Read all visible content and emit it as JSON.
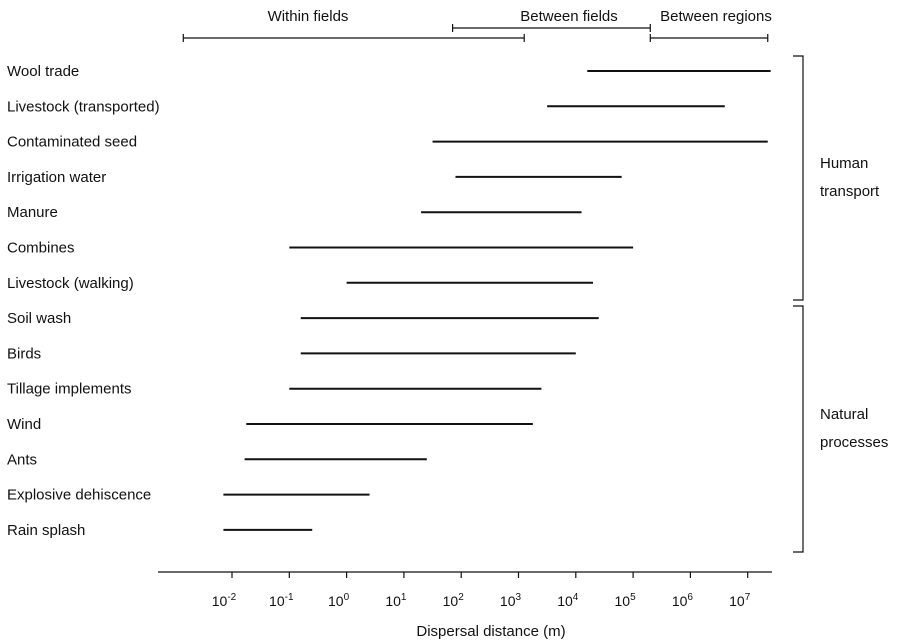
{
  "chart_data": {
    "type": "range-bar",
    "xlabel": "Dispersal distance (m)",
    "xscale": "log10",
    "xlim_exponent": [
      -2.3,
      7.5
    ],
    "tick_base": "10",
    "tick_exponents": [
      "-2",
      "-1",
      "0",
      "1",
      "2",
      "3",
      "4",
      "5",
      "6",
      "7"
    ],
    "tick_values": [
      -2,
      -1,
      0,
      1,
      2,
      3,
      4,
      5,
      6,
      7
    ],
    "categories": [
      "Wool trade",
      "Livestock (transported)",
      "Contaminated seed",
      "Irrigation water",
      "Manure",
      "Combines",
      "Livestock (walking)",
      "Soil wash",
      "Birds",
      "Tillage implements",
      "Wind",
      "Ants",
      "Explosive dehiscence",
      "Rain splash"
    ],
    "ranges_log10": [
      [
        4.2,
        7.4
      ],
      [
        3.5,
        6.6
      ],
      [
        1.5,
        7.35
      ],
      [
        1.9,
        4.8
      ],
      [
        1.3,
        4.1
      ],
      [
        -1.0,
        5.0
      ],
      [
        0.0,
        4.3
      ],
      [
        -0.8,
        4.4
      ],
      [
        -0.8,
        4.0
      ],
      [
        -1.0,
        3.4
      ],
      [
        -1.75,
        3.25
      ],
      [
        -1.78,
        1.4
      ],
      [
        -2.15,
        0.4
      ],
      [
        -2.15,
        -0.6
      ]
    ],
    "scale_ranges": [
      {
        "label": "Within fields",
        "range_log10": [
          -2.85,
          3.1
        ]
      },
      {
        "label": "Between fields",
        "range_log10": [
          1.85,
          5.3
        ]
      },
      {
        "label": "Between regions",
        "range_log10": [
          5.3,
          7.35
        ]
      }
    ],
    "groups": [
      {
        "label_lines": [
          "Human",
          "transport"
        ],
        "first_index": 0,
        "last_index": 6
      },
      {
        "label_lines": [
          "Natural",
          "processes"
        ],
        "first_index": 7,
        "last_index": 13
      }
    ]
  }
}
